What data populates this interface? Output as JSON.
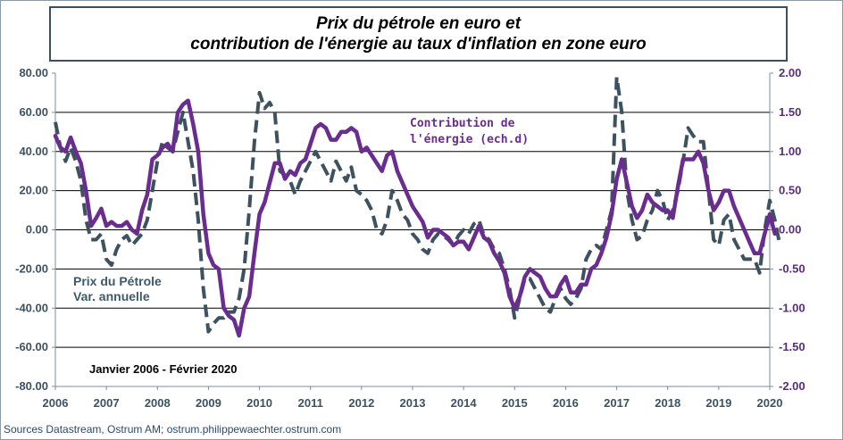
{
  "title": {
    "line1": "Prix du pétrole en euro et",
    "line2": "contribution de l'énergie au taux d'inflation en zone euro"
  },
  "source": "Sources Datastream, Ostrum AM; ostrum.philippewaechter.ostrum.com",
  "colors": {
    "oil": "#3d5260",
    "energy": "#6a2d8f",
    "left_axis": "#3d5260",
    "right_axis": "#5a2d7a"
  },
  "chart_data": {
    "type": "line",
    "annotations": {
      "energy_line1": "Contribution de",
      "energy_line2": "l'énergie (ech.d)",
      "oil_line1": "Prix du Pétrole",
      "oil_line2": "Var. annuelle",
      "period": "Janvier 2006 - Février 2020"
    },
    "x_ticks": [
      "2006",
      "2007",
      "2008",
      "2009",
      "2010",
      "2011",
      "2012",
      "2013",
      "2014",
      "2015",
      "2016",
      "2017",
      "2018",
      "2019",
      "2020"
    ],
    "y_left": {
      "ticks": [
        "80.00",
        "60.00",
        "40.00",
        "20.00",
        "0.00",
        "-20.00",
        "-40.00",
        "-60.00",
        "-80.00"
      ],
      "range": [
        -80,
        80
      ]
    },
    "y_right": {
      "ticks": [
        "2.00",
        "1.50",
        "1.00",
        "0.50",
        "0.00",
        "-0.50",
        "-1.00",
        "-1.50",
        "-2.00"
      ],
      "range": [
        -2,
        2
      ]
    },
    "grid": "horizontal",
    "series": [
      {
        "name": "Prix du Pétrole Var. annuelle",
        "axis": "left",
        "style": "dashed",
        "points": [
          [
            2006.0,
            55
          ],
          [
            2006.1,
            42
          ],
          [
            2006.2,
            35
          ],
          [
            2006.3,
            42
          ],
          [
            2006.4,
            35
          ],
          [
            2006.5,
            25
          ],
          [
            2006.6,
            5
          ],
          [
            2006.7,
            -5
          ],
          [
            2006.8,
            -5
          ],
          [
            2006.9,
            -2
          ],
          [
            2007.0,
            -15
          ],
          [
            2007.1,
            -18
          ],
          [
            2007.2,
            -10
          ],
          [
            2007.3,
            -5
          ],
          [
            2007.4,
            -3
          ],
          [
            2007.5,
            -8
          ],
          [
            2007.6,
            -5
          ],
          [
            2007.7,
            -2
          ],
          [
            2007.8,
            5
          ],
          [
            2007.9,
            20
          ],
          [
            2008.0,
            35
          ],
          [
            2008.1,
            45
          ],
          [
            2008.2,
            42
          ],
          [
            2008.3,
            40
          ],
          [
            2008.4,
            50
          ],
          [
            2008.5,
            60
          ],
          [
            2008.6,
            45
          ],
          [
            2008.7,
            30
          ],
          [
            2008.8,
            5
          ],
          [
            2008.9,
            -30
          ],
          [
            2009.0,
            -52
          ],
          [
            2009.1,
            -48
          ],
          [
            2009.2,
            -45
          ],
          [
            2009.3,
            -45
          ],
          [
            2009.4,
            -42
          ],
          [
            2009.5,
            -42
          ],
          [
            2009.6,
            -35
          ],
          [
            2009.7,
            -20
          ],
          [
            2009.8,
            10
          ],
          [
            2009.9,
            45
          ],
          [
            2010.0,
            70
          ],
          [
            2010.1,
            62
          ],
          [
            2010.2,
            65
          ],
          [
            2010.3,
            60
          ],
          [
            2010.4,
            30
          ],
          [
            2010.5,
            28
          ],
          [
            2010.6,
            25
          ],
          [
            2010.7,
            18
          ],
          [
            2010.8,
            25
          ],
          [
            2010.9,
            30
          ],
          [
            2011.0,
            35
          ],
          [
            2011.1,
            40
          ],
          [
            2011.2,
            35
          ],
          [
            2011.3,
            30
          ],
          [
            2011.4,
            25
          ],
          [
            2011.5,
            35
          ],
          [
            2011.6,
            30
          ],
          [
            2011.7,
            25
          ],
          [
            2011.8,
            32
          ],
          [
            2011.9,
            20
          ],
          [
            2012.0,
            18
          ],
          [
            2012.1,
            15
          ],
          [
            2012.2,
            10
          ],
          [
            2012.3,
            0
          ],
          [
            2012.4,
            -2
          ],
          [
            2012.5,
            5
          ],
          [
            2012.6,
            20
          ],
          [
            2012.7,
            15
          ],
          [
            2012.8,
            8
          ],
          [
            2012.9,
            5
          ],
          [
            2013.0,
            -2
          ],
          [
            2013.1,
            -5
          ],
          [
            2013.2,
            -10
          ],
          [
            2013.3,
            -12
          ],
          [
            2013.4,
            -5
          ],
          [
            2013.5,
            -2
          ],
          [
            2013.6,
            -3
          ],
          [
            2013.7,
            -5
          ],
          [
            2013.8,
            -8
          ],
          [
            2013.9,
            -3
          ],
          [
            2014.0,
            0
          ],
          [
            2014.1,
            -2
          ],
          [
            2014.2,
            3
          ],
          [
            2014.3,
            5
          ],
          [
            2014.4,
            -3
          ],
          [
            2014.5,
            -5
          ],
          [
            2014.6,
            -10
          ],
          [
            2014.7,
            -12
          ],
          [
            2014.8,
            -20
          ],
          [
            2014.9,
            -30
          ],
          [
            2015.0,
            -45
          ],
          [
            2015.1,
            -35
          ],
          [
            2015.2,
            -25
          ],
          [
            2015.3,
            -25
          ],
          [
            2015.4,
            -30
          ],
          [
            2015.5,
            -35
          ],
          [
            2015.6,
            -40
          ],
          [
            2015.7,
            -42
          ],
          [
            2015.8,
            -35
          ],
          [
            2015.9,
            -30
          ],
          [
            2016.0,
            -35
          ],
          [
            2016.1,
            -38
          ],
          [
            2016.2,
            -35
          ],
          [
            2016.3,
            -30
          ],
          [
            2016.4,
            -15
          ],
          [
            2016.5,
            -10
          ],
          [
            2016.6,
            -8
          ],
          [
            2016.7,
            -10
          ],
          [
            2016.8,
            0
          ],
          [
            2016.9,
            10
          ],
          [
            2017.0,
            78
          ],
          [
            2017.1,
            60
          ],
          [
            2017.2,
            20
          ],
          [
            2017.3,
            5
          ],
          [
            2017.4,
            -5
          ],
          [
            2017.5,
            -3
          ],
          [
            2017.6,
            5
          ],
          [
            2017.7,
            10
          ],
          [
            2017.8,
            20
          ],
          [
            2017.9,
            15
          ],
          [
            2018.0,
            5
          ],
          [
            2018.1,
            10
          ],
          [
            2018.2,
            20
          ],
          [
            2018.3,
            35
          ],
          [
            2018.4,
            52
          ],
          [
            2018.5,
            48
          ],
          [
            2018.6,
            45
          ],
          [
            2018.7,
            45
          ],
          [
            2018.8,
            20
          ],
          [
            2018.9,
            -5
          ],
          [
            2019.0,
            -8
          ],
          [
            2019.1,
            5
          ],
          [
            2019.2,
            8
          ],
          [
            2019.3,
            -5
          ],
          [
            2019.4,
            -10
          ],
          [
            2019.5,
            -15
          ],
          [
            2019.6,
            -15
          ],
          [
            2019.7,
            -15
          ],
          [
            2019.8,
            -22
          ],
          [
            2019.9,
            0
          ],
          [
            2020.0,
            15
          ],
          [
            2020.1,
            5
          ],
          [
            2020.2,
            -8
          ]
        ]
      },
      {
        "name": "Contribution de l'énergie (ech.d)",
        "axis": "right",
        "style": "solid",
        "points": [
          [
            2006.0,
            1.2
          ],
          [
            2006.1,
            1.05
          ],
          [
            2006.2,
            1.0
          ],
          [
            2006.3,
            1.18
          ],
          [
            2006.4,
            1.0
          ],
          [
            2006.5,
            0.85
          ],
          [
            2006.6,
            0.5
          ],
          [
            2006.7,
            0.05
          ],
          [
            2006.8,
            0.15
          ],
          [
            2006.9,
            0.27
          ],
          [
            2007.0,
            0.05
          ],
          [
            2007.1,
            0.1
          ],
          [
            2007.2,
            0.05
          ],
          [
            2007.3,
            0.05
          ],
          [
            2007.4,
            0.1
          ],
          [
            2007.5,
            0.0
          ],
          [
            2007.6,
            -0.05
          ],
          [
            2007.7,
            0.25
          ],
          [
            2007.8,
            0.45
          ],
          [
            2007.9,
            0.9
          ],
          [
            2008.0,
            0.95
          ],
          [
            2008.1,
            1.05
          ],
          [
            2008.2,
            1.1
          ],
          [
            2008.3,
            1.0
          ],
          [
            2008.4,
            1.5
          ],
          [
            2008.5,
            1.6
          ],
          [
            2008.6,
            1.65
          ],
          [
            2008.7,
            1.35
          ],
          [
            2008.8,
            1.0
          ],
          [
            2008.9,
            0.2
          ],
          [
            2009.0,
            -0.3
          ],
          [
            2009.1,
            -0.45
          ],
          [
            2009.2,
            -0.5
          ],
          [
            2009.3,
            -1.0
          ],
          [
            2009.4,
            -1.1
          ],
          [
            2009.5,
            -1.15
          ],
          [
            2009.6,
            -1.35
          ],
          [
            2009.7,
            -1.0
          ],
          [
            2009.8,
            -0.85
          ],
          [
            2009.9,
            -0.3
          ],
          [
            2010.0,
            0.2
          ],
          [
            2010.1,
            0.35
          ],
          [
            2010.2,
            0.6
          ],
          [
            2010.3,
            0.85
          ],
          [
            2010.4,
            0.85
          ],
          [
            2010.5,
            0.65
          ],
          [
            2010.6,
            0.75
          ],
          [
            2010.7,
            0.7
          ],
          [
            2010.8,
            0.85
          ],
          [
            2010.9,
            0.9
          ],
          [
            2011.0,
            1.1
          ],
          [
            2011.1,
            1.3
          ],
          [
            2011.2,
            1.35
          ],
          [
            2011.3,
            1.3
          ],
          [
            2011.4,
            1.15
          ],
          [
            2011.5,
            1.15
          ],
          [
            2011.6,
            1.25
          ],
          [
            2011.7,
            1.25
          ],
          [
            2011.8,
            1.3
          ],
          [
            2011.9,
            1.25
          ],
          [
            2012.0,
            1.0
          ],
          [
            2012.1,
            1.05
          ],
          [
            2012.2,
            0.95
          ],
          [
            2012.3,
            0.85
          ],
          [
            2012.4,
            0.75
          ],
          [
            2012.5,
            0.95
          ],
          [
            2012.6,
            1.0
          ],
          [
            2012.7,
            0.75
          ],
          [
            2012.8,
            0.6
          ],
          [
            2012.9,
            0.45
          ],
          [
            2013.0,
            0.3
          ],
          [
            2013.1,
            0.2
          ],
          [
            2013.2,
            0.1
          ],
          [
            2013.3,
            -0.1
          ],
          [
            2013.4,
            0.0
          ],
          [
            2013.5,
            0.0
          ],
          [
            2013.6,
            -0.05
          ],
          [
            2013.7,
            -0.1
          ],
          [
            2013.8,
            -0.2
          ],
          [
            2013.9,
            -0.15
          ],
          [
            2014.0,
            -0.15
          ],
          [
            2014.1,
            -0.25
          ],
          [
            2014.2,
            -0.1
          ],
          [
            2014.3,
            0.05
          ],
          [
            2014.4,
            -0.1
          ],
          [
            2014.5,
            -0.15
          ],
          [
            2014.6,
            -0.3
          ],
          [
            2014.7,
            -0.4
          ],
          [
            2014.8,
            -0.55
          ],
          [
            2014.9,
            -0.85
          ],
          [
            2015.0,
            -1.0
          ],
          [
            2015.1,
            -0.85
          ],
          [
            2015.2,
            -0.6
          ],
          [
            2015.3,
            -0.5
          ],
          [
            2015.4,
            -0.55
          ],
          [
            2015.5,
            -0.6
          ],
          [
            2015.6,
            -0.75
          ],
          [
            2015.7,
            -0.85
          ],
          [
            2015.8,
            -0.85
          ],
          [
            2015.9,
            -0.7
          ],
          [
            2016.0,
            -0.6
          ],
          [
            2016.1,
            -0.8
          ],
          [
            2016.2,
            -0.8
          ],
          [
            2016.3,
            -0.7
          ],
          [
            2016.4,
            -0.7
          ],
          [
            2016.5,
            -0.5
          ],
          [
            2016.6,
            -0.45
          ],
          [
            2016.7,
            -0.3
          ],
          [
            2016.8,
            -0.1
          ],
          [
            2016.9,
            0.2
          ],
          [
            2017.0,
            0.65
          ],
          [
            2017.1,
            0.9
          ],
          [
            2017.2,
            0.6
          ],
          [
            2017.3,
            0.3
          ],
          [
            2017.4,
            0.15
          ],
          [
            2017.5,
            0.25
          ],
          [
            2017.6,
            0.45
          ],
          [
            2017.7,
            0.35
          ],
          [
            2017.8,
            0.3
          ],
          [
            2017.9,
            0.25
          ],
          [
            2018.0,
            0.25
          ],
          [
            2018.1,
            0.15
          ],
          [
            2018.2,
            0.55
          ],
          [
            2018.3,
            0.9
          ],
          [
            2018.4,
            0.9
          ],
          [
            2018.5,
            0.9
          ],
          [
            2018.6,
            1.0
          ],
          [
            2018.7,
            0.85
          ],
          [
            2018.8,
            0.5
          ],
          [
            2018.9,
            0.25
          ],
          [
            2019.0,
            0.35
          ],
          [
            2019.1,
            0.5
          ],
          [
            2019.2,
            0.5
          ],
          [
            2019.3,
            0.3
          ],
          [
            2019.4,
            0.15
          ],
          [
            2019.5,
            0.0
          ],
          [
            2019.6,
            -0.15
          ],
          [
            2019.7,
            -0.3
          ],
          [
            2019.8,
            -0.3
          ],
          [
            2019.9,
            -0.05
          ],
          [
            2020.0,
            0.2
          ],
          [
            2020.1,
            -0.05
          ]
        ]
      }
    ]
  }
}
